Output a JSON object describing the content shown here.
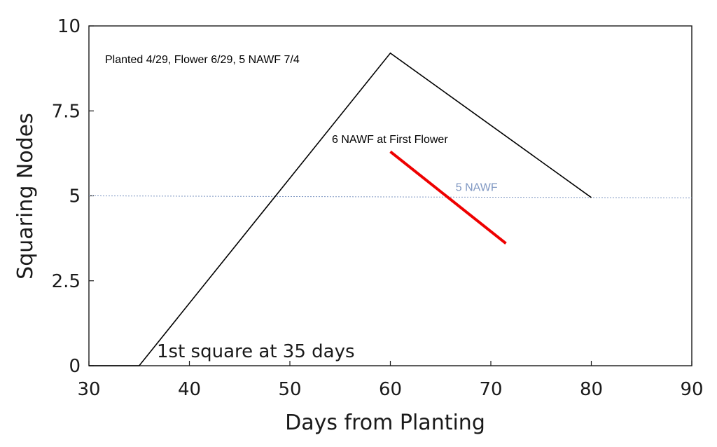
{
  "chart_data": {
    "type": "line",
    "xlabel": "Days from Planting",
    "ylabel": "Squaring Nodes",
    "xlim": [
      30,
      90
    ],
    "ylim": [
      0,
      10
    ],
    "x_ticks": [
      30,
      40,
      50,
      60,
      70,
      80,
      90
    ],
    "y_ticks": [
      0,
      2.5,
      5,
      7.5,
      10
    ],
    "y_tick_labels": [
      "0",
      "2.5",
      "5",
      "7.5",
      "10"
    ],
    "grid": false,
    "series": [
      {
        "color": "#000000",
        "x": [
          30,
          35,
          60,
          80
        ],
        "y": [
          0,
          0,
          9.2,
          4.95
        ]
      },
      {
        "color": "#ee0000",
        "x": [
          60,
          71.5
        ],
        "y": [
          6.3,
          3.6
        ]
      }
    ],
    "reference_lines": [
      {
        "y": 5,
        "label": "5 NAWF",
        "style": "dotted",
        "color": "#7f97c2"
      }
    ],
    "annotations": [
      {
        "text": "Planted 4/29, Flower 6/29, 5 NAWF 7/4"
      },
      {
        "text": "6 NAWF at First Flower"
      },
      {
        "text": "1st square at 35 days"
      }
    ]
  }
}
